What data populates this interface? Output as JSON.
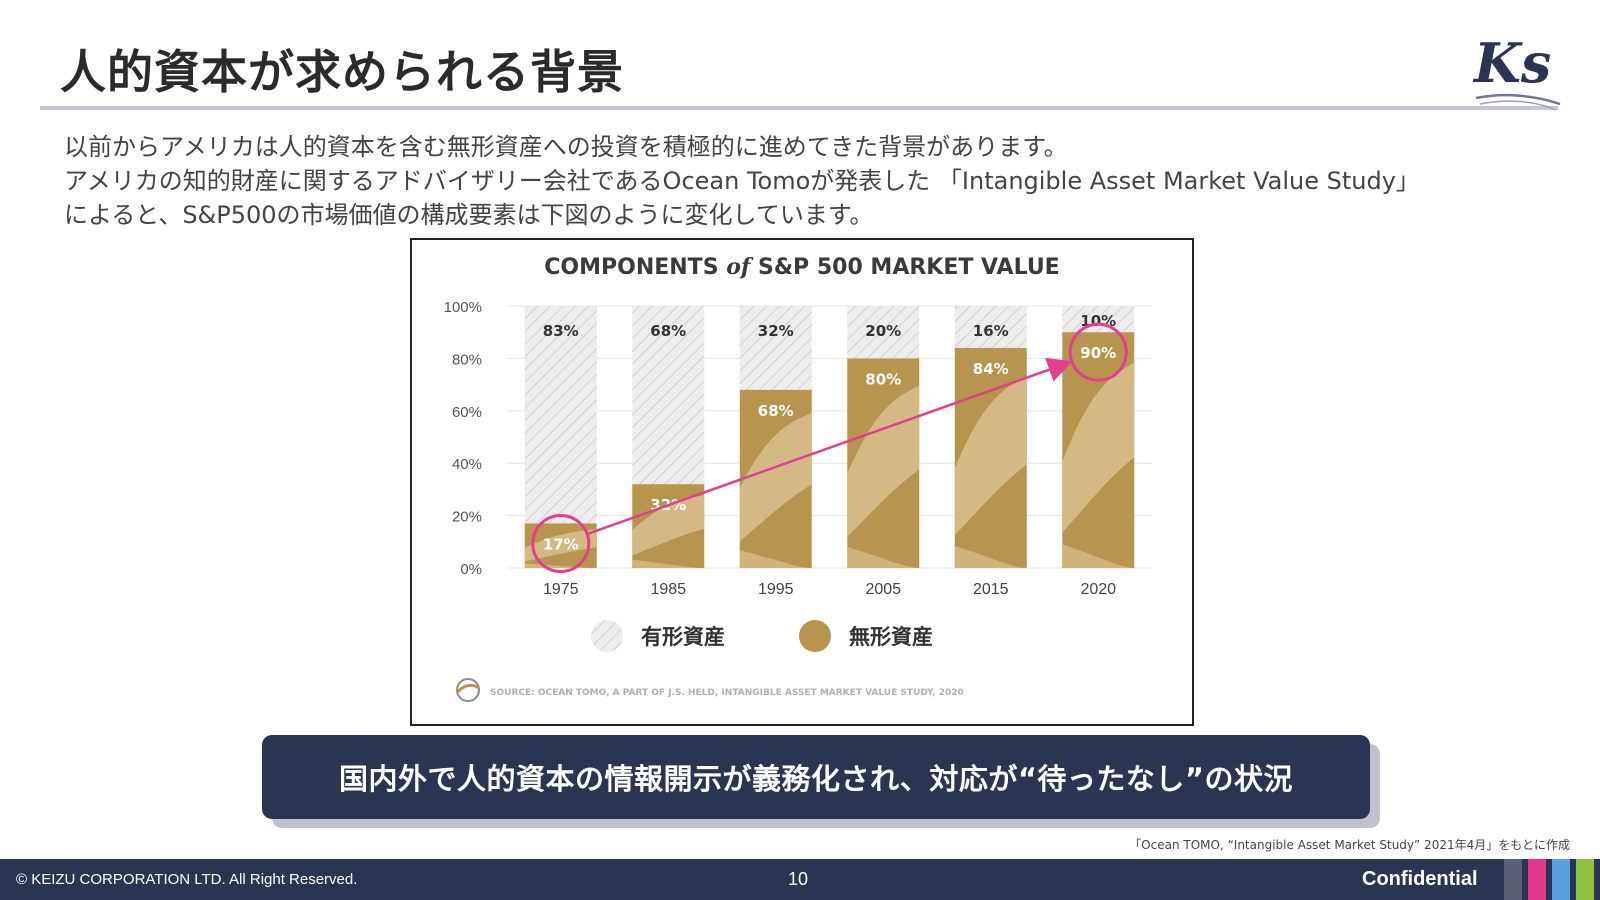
{
  "slide": {
    "title": "人的資本が求められる背景",
    "intro_lines": [
      "以前からアメリカは人的資本を含む無形資産への投資を積極的に進めてきた背景があります。",
      "アメリカの知的財産に関するアドバイザリー会社であるOcean Tomoが発表した 「Intangible Asset Market Value Study」",
      "によると、S&P500の市場価値の構成要素は下図のように変化しています。"
    ],
    "conclusion": "国内外で人的資本の情報開示が義務化され、対応が“待ったなし”の状況",
    "source_note": "「Ocean TOMO, “Intangible Asset Market Study” 2021年4月」をもとに作成"
  },
  "footer": {
    "copyright": "© KEIZU CORPORATION LTD. All Right Reserved.",
    "page_number": "10",
    "confidential": "Confidential",
    "stripe_colors": [
      "#5a6172",
      "#e3398a",
      "#5aa0e0",
      "#8fc23f"
    ]
  },
  "logo": {
    "text": "Ks",
    "icon": "ks-brand-logo"
  },
  "chart_data": {
    "type": "bar",
    "stacked": true,
    "title_parts": [
      "COMPONENTS",
      "of",
      "S&P 500 MARKET VALUE"
    ],
    "categories": [
      "1975",
      "1985",
      "1995",
      "2005",
      "2015",
      "2020"
    ],
    "series": [
      {
        "name": "無形資産",
        "values": [
          17,
          32,
          68,
          80,
          84,
          90
        ],
        "color": "#b8954f"
      },
      {
        "name": "有形資産",
        "values": [
          83,
          68,
          32,
          20,
          16,
          10
        ],
        "color": "#e9e9e9"
      }
    ],
    "labels_intangible": [
      "17%",
      "32%",
      "68%",
      "80%",
      "84%",
      "90%"
    ],
    "labels_tangible": [
      "83%",
      "68%",
      "32%",
      "20%",
      "16%",
      "10%"
    ],
    "yticks": [
      "0%",
      "20%",
      "40%",
      "60%",
      "80%",
      "100%"
    ],
    "ylim": [
      0,
      100
    ],
    "grid": true,
    "legend": [
      {
        "label": "有形資産",
        "swatch": "hatched"
      },
      {
        "label": "無形資産",
        "swatch": "gold"
      }
    ],
    "legend_position": "bottom",
    "source": "SOURCE:  OCEAN TOMO, A PART OF J.S. HELD, INTANGIBLE ASSET MARKET VALUE STUDY, 2020",
    "annotation": {
      "from": "1975",
      "to": "2020",
      "color": "#e0408e"
    }
  }
}
